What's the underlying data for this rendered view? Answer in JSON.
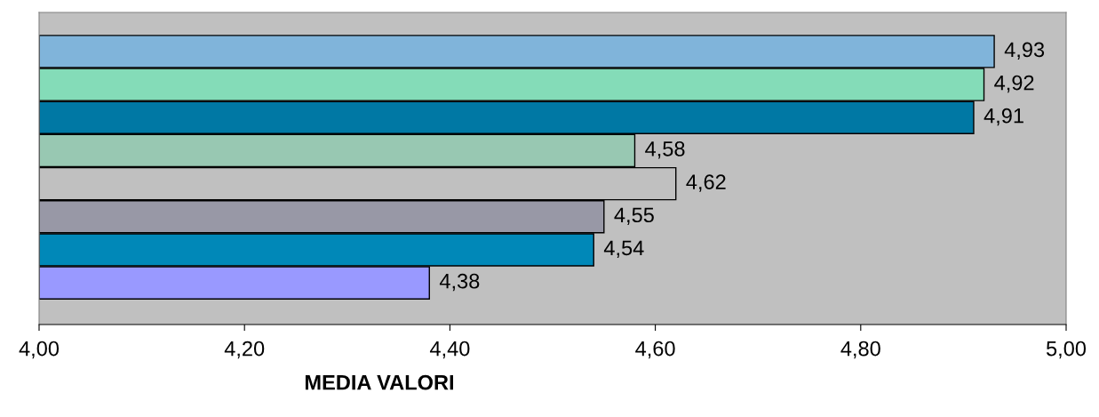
{
  "chart_data": {
    "type": "bar",
    "orientation": "horizontal",
    "xlabel": "MEDIA VALORI",
    "categories": [
      null,
      null,
      null,
      null,
      null,
      null,
      null,
      null
    ],
    "values": [
      4.93,
      4.92,
      4.91,
      4.58,
      4.62,
      4.55,
      4.54,
      4.38
    ],
    "value_labels": [
      "4,93",
      "4,92",
      "4,91",
      "4,58",
      "4,62",
      "4,55",
      "4,54",
      "4,38"
    ],
    "colors": [
      "#80b4da",
      "#84dcb8",
      "#0078a4",
      "#98c8b2",
      "#c0c0c0",
      "#9898a6",
      "#0088b8",
      "#9999ff"
    ],
    "xlim": [
      4.0,
      5.0
    ],
    "xticks": [
      {
        "value": 4.0,
        "label": "4,00"
      },
      {
        "value": 4.2,
        "label": "4,20"
      },
      {
        "value": 4.4,
        "label": "4,40"
      },
      {
        "value": 4.6,
        "label": "4,60"
      },
      {
        "value": 4.8,
        "label": "4,80"
      },
      {
        "value": 5.0,
        "label": "5,00"
      }
    ],
    "grid": false,
    "legend": false
  }
}
